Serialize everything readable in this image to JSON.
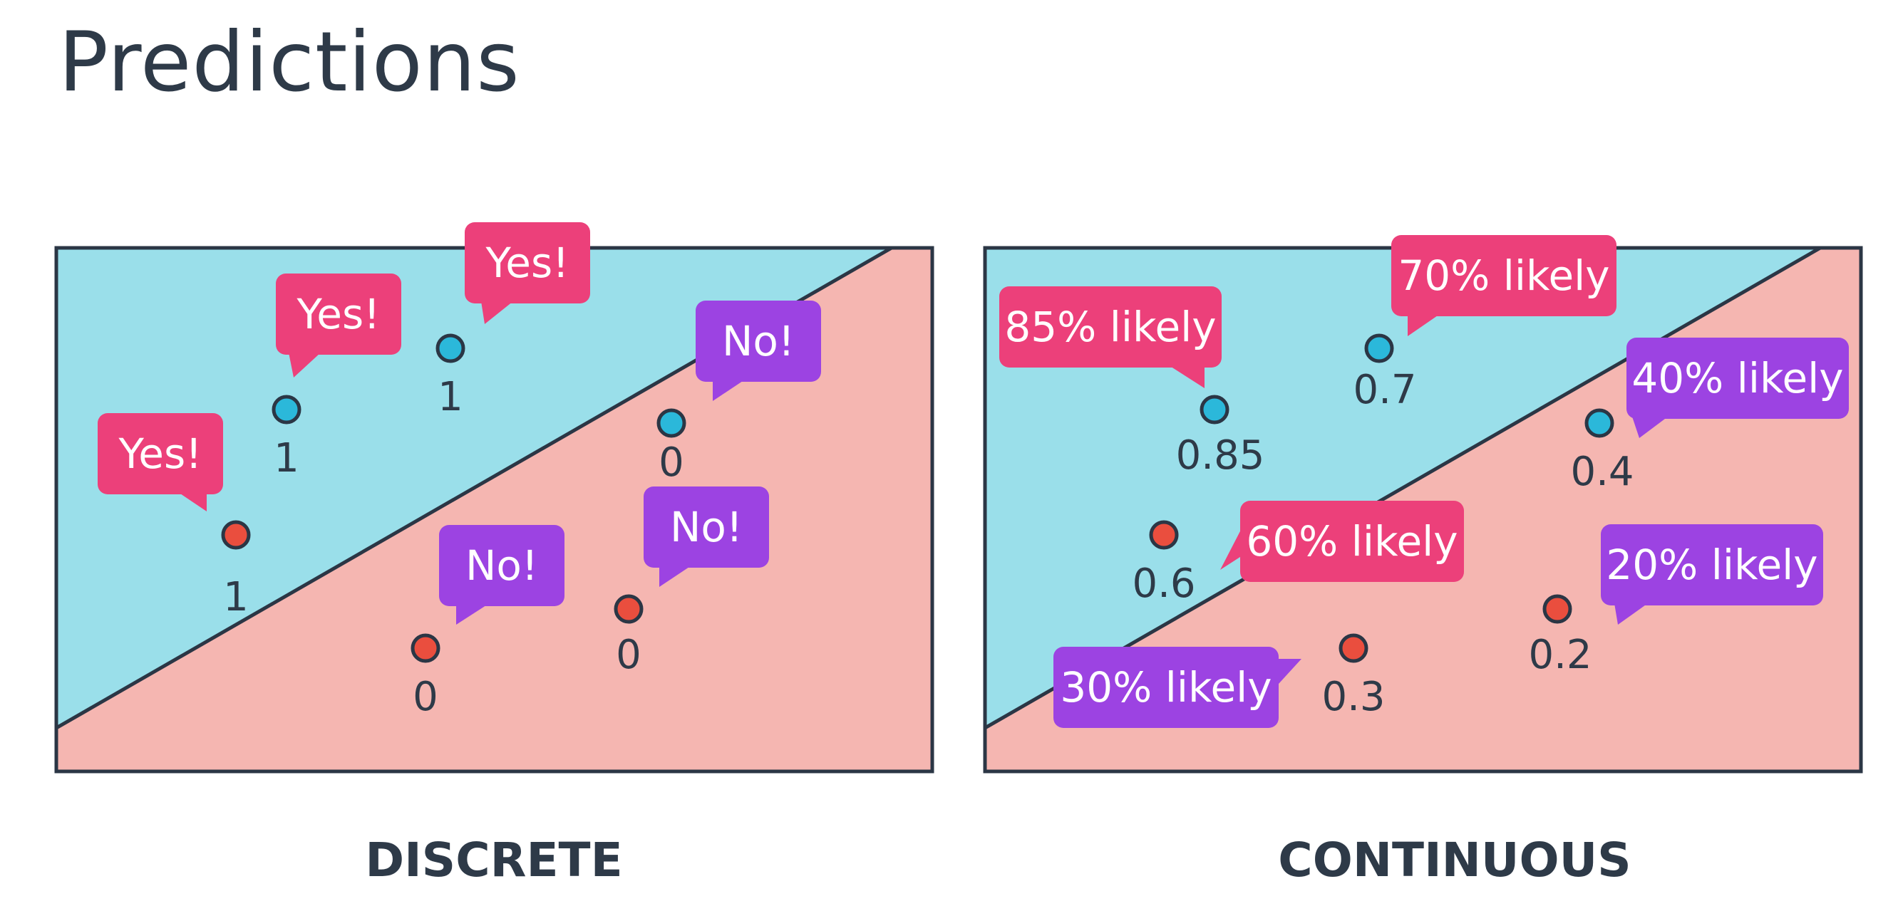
{
  "title": "Predictions",
  "colors": {
    "region_positive": "#9adfea",
    "region_negative": "#f5b6b1",
    "frame": "#2b3645",
    "point_positive": "#2bb8da",
    "point_negative": "#ea4e3e",
    "bubble_pink": "#ec407a",
    "bubble_purple": "#9c43e2"
  },
  "panels": [
    {
      "id": "discrete",
      "label": "DISCRETE",
      "points": [
        {
          "class": "positive",
          "value": "1",
          "bubble": "Yes!",
          "bubble_color": "pink"
        },
        {
          "class": "positive",
          "value": "1",
          "bubble": "Yes!",
          "bubble_color": "pink"
        },
        {
          "class": "negative",
          "value": "1",
          "bubble": "Yes!",
          "bubble_color": "pink"
        },
        {
          "class": "positive",
          "value": "0",
          "bubble": "No!",
          "bubble_color": "purple"
        },
        {
          "class": "negative",
          "value": "0",
          "bubble": "No!",
          "bubble_color": "purple"
        },
        {
          "class": "negative",
          "value": "0",
          "bubble": "No!",
          "bubble_color": "purple"
        }
      ]
    },
    {
      "id": "continuous",
      "label": "CONTINUOUS",
      "points": [
        {
          "class": "positive",
          "value": "0.85",
          "bubble": "85% likely",
          "bubble_color": "pink"
        },
        {
          "class": "positive",
          "value": "0.7",
          "bubble": "70% likely",
          "bubble_color": "pink"
        },
        {
          "class": "negative",
          "value": "0.6",
          "bubble": "60% likely",
          "bubble_color": "pink"
        },
        {
          "class": "positive",
          "value": "0.4",
          "bubble": "40% likely",
          "bubble_color": "purple"
        },
        {
          "class": "negative",
          "value": "0.3",
          "bubble": "30% likely",
          "bubble_color": "purple"
        },
        {
          "class": "negative",
          "value": "0.2",
          "bubble": "20% likely",
          "bubble_color": "purple"
        }
      ]
    }
  ]
}
